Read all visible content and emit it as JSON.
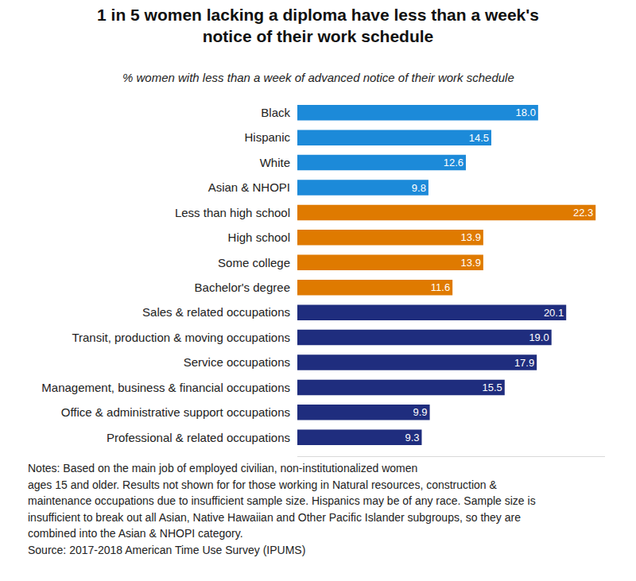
{
  "chart_data": {
    "type": "bar",
    "orientation": "horizontal",
    "title": [
      "1 in 5 women lacking a diploma have less than a week's",
      "notice of their work schedule"
    ],
    "subtitle": "% women with less than a week of advanced notice of their work schedule",
    "categories": [
      "Black",
      "Hispanic",
      "White",
      "Asian & NHOPI",
      "Less than high school",
      "High school",
      "Some college",
      "Bachelor's degree",
      "Sales & related occupations",
      "Transit, production & moving occupations",
      "Service occupations",
      "Management, business & financial occupations",
      "Office & administrative support occupations",
      "Professional & related occupations"
    ],
    "values": [
      18.0,
      14.5,
      12.6,
      9.8,
      22.3,
      13.9,
      13.9,
      11.6,
      20.1,
      19.0,
      17.9,
      15.5,
      9.9,
      9.3
    ],
    "value_labels": [
      "18.0",
      "14.5",
      "12.6",
      "9.8",
      "22.3",
      "13.9",
      "13.9",
      "11.6",
      "20.1",
      "19.0",
      "17.9",
      "15.5",
      "9.9",
      "9.3"
    ],
    "colors": [
      "#1c8ad9",
      "#1c8ad9",
      "#1c8ad9",
      "#1c8ad9",
      "#df7a00",
      "#df7a00",
      "#df7a00",
      "#df7a00",
      "#1f2d7e",
      "#1f2d7e",
      "#1f2d7e",
      "#1f2d7e",
      "#1f2d7e",
      "#1f2d7e"
    ],
    "xlim": [
      0,
      23
    ],
    "data_labels": true,
    "tick_labels": "y",
    "grid": false,
    "notes": [
      "Notes: Based on the main job of employed civilian, non-institutionalized women",
      "ages 15 and older. Results not shown for for those working in Natural resources, construction &",
      "maintenance occupations due to insufficient sample size. Hispanics may be of any race. Sample size is",
      "insufficient to break out all Asian, Native Hawaiian and Other Pacific Islander subgroups, so they are",
      "combined into the Asian & NHOPI category.",
      "Source: 2017-2018 American Time Use Survey (IPUMS)"
    ]
  }
}
